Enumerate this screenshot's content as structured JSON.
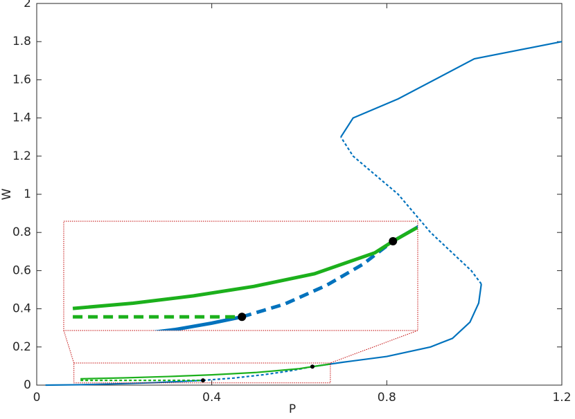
{
  "chart_data": {
    "type": "line",
    "x_label": "P",
    "y_label": "W",
    "xlim": [
      0,
      1.2
    ],
    "ylim": [
      0,
      2
    ],
    "xticks": [
      0,
      0.4,
      0.8,
      1.2
    ],
    "yticks": [
      0,
      0.2,
      0.4,
      0.6,
      0.8,
      1,
      1.2,
      1.4,
      1.6,
      1.8,
      2
    ],
    "series": [
      {
        "color": "#0072bd",
        "style": "solid",
        "x": [
          0.02,
          0.1,
          0.2,
          0.27,
          0.33,
          0.38
        ],
        "values": [
          0,
          0.002,
          0.008,
          0.013,
          0.019,
          0.025
        ]
      },
      {
        "color": "#0072bd",
        "style": "dashed",
        "x": [
          0.38,
          0.45,
          0.52,
          0.58,
          0.63
        ],
        "values": [
          0.025,
          0.037,
          0.055,
          0.075,
          0.097
        ]
      },
      {
        "color": "#0072bd",
        "style": "solid",
        "x": [
          0.63,
          0.7,
          0.8,
          0.9,
          0.95,
          0.99,
          1.01,
          1.016
        ],
        "values": [
          0.097,
          0.12,
          0.15,
          0.2,
          0.245,
          0.33,
          0.43,
          0.53
        ]
      },
      {
        "color": "#0072bd",
        "style": "dashed",
        "x": [
          1.016,
          0.993,
          0.9,
          0.826,
          0.723,
          0.695
        ],
        "values": [
          0.53,
          0.6,
          0.8,
          1.0,
          1.2,
          1.3
        ]
      },
      {
        "color": "#0072bd",
        "style": "solid",
        "x": [
          0.695,
          0.723,
          0.826,
          1.0,
          1.2
        ],
        "values": [
          1.3,
          1.4,
          1.5,
          1.71,
          1.8
        ]
      },
      {
        "color": "#1cb01c",
        "style": "solid",
        "x": [
          0.1,
          0.2,
          0.3,
          0.4,
          0.5,
          0.6,
          0.63,
          0.67
        ],
        "values": [
          0.033,
          0.038,
          0.045,
          0.054,
          0.066,
          0.086,
          0.097,
          0.11
        ]
      },
      {
        "color": "#1cb01c",
        "style": "dashed",
        "x": [
          0.1,
          0.38
        ],
        "values": [
          0.025,
          0.025
        ]
      }
    ],
    "points": {
      "color": "#000000",
      "x": [
        0.38,
        0.63
      ],
      "values": [
        0.025,
        0.097
      ]
    },
    "inset": {
      "xlim": [
        0.085,
        0.671
      ],
      "ylim": [
        0.012,
        0.116
      ],
      "color": "#c00000"
    }
  }
}
